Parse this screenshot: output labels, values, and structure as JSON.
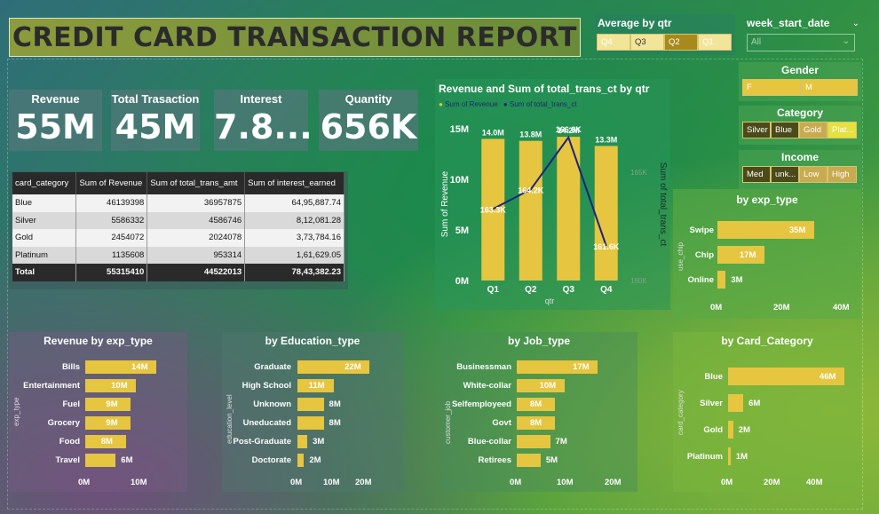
{
  "header": {
    "title": "CREDIT CARD TRANSACTION REPORT"
  },
  "kpis": [
    {
      "label": "Revenue",
      "value": "55M"
    },
    {
      "label": "Total Trasaction",
      "value": "45M"
    },
    {
      "label": "Interest",
      "value": "7.8..."
    },
    {
      "label": "Quantity",
      "value": "656K"
    }
  ],
  "slicers": {
    "avg_qtr": {
      "title": "Average by qtr",
      "items": [
        "Q4",
        "Q3",
        "Q2",
        "Q1"
      ]
    },
    "week": {
      "title": "week_start_date",
      "value": "All"
    },
    "gender": {
      "title": "Gender",
      "items": [
        "F",
        "M"
      ]
    },
    "category": {
      "title": "Category",
      "items": [
        "Silver",
        "Blue",
        "Gold",
        "Plat..."
      ]
    },
    "income": {
      "title": "Income",
      "items": [
        "Med",
        "unk...",
        "Low",
        "High"
      ]
    }
  },
  "colors": {
    "accent": "#e6c540",
    "line": "#1a237e",
    "dark": "#2a2a2a"
  },
  "table": {
    "headers": [
      "card_category",
      "Sum of Revenue",
      "Sum of total_trans_amt",
      "Sum of interest_earned"
    ],
    "rows": [
      [
        "Blue",
        "46139398",
        "36957875",
        "64,95,887.74"
      ],
      [
        "Silver",
        "5586332",
        "4586746",
        "8,12,081.28"
      ],
      [
        "Gold",
        "2454072",
        "2024078",
        "3,73,784.16"
      ],
      [
        "Platinum",
        "1135608",
        "953314",
        "1,61,629.05"
      ]
    ],
    "total": [
      "Total",
      "55315410",
      "44522013",
      "78,43,382.23"
    ]
  },
  "chart_data": [
    {
      "type": "bar",
      "title": "Revenue and Sum of total_trans_ct by qtr",
      "legend": [
        "Sum of Revenue",
        "Sum of total_trans_ct"
      ],
      "categories": [
        "Q1",
        "Q2",
        "Q3",
        "Q4"
      ],
      "series": [
        {
          "name": "Sum of Revenue",
          "values": [
            14.0,
            13.8,
            14.2,
            13.3
          ],
          "labels": [
            "14.0M",
            "13.8M",
            "14.2M",
            "13.3M"
          ]
        },
        {
          "name": "Sum of total_trans_ct",
          "values": [
            163.3,
            164.2,
            166.6,
            161.6
          ],
          "labels": [
            "163.3K",
            "164.2K",
            "166.6K",
            "161.6K"
          ]
        }
      ],
      "xlabel": "qtr",
      "ylabel": "Sum of Revenue",
      "y2label": "Sum of total_trans_ct",
      "yticks": [
        "15M",
        "10M",
        "5M",
        "0M"
      ],
      "y2ticks": [
        "165K",
        "160K"
      ],
      "ylim": [
        0,
        15
      ],
      "y2lim": [
        160,
        167
      ]
    },
    {
      "type": "bar",
      "title": "by exp_type",
      "ylabel": "use_chip",
      "categories": [
        "Swipe",
        "Chip",
        "Online"
      ],
      "values": [
        35,
        17,
        3
      ],
      "labels": [
        "35M",
        "17M",
        "3M"
      ],
      "xticks": [
        "0M",
        "20M",
        "40M"
      ],
      "xlim": [
        0,
        45
      ]
    },
    {
      "type": "bar",
      "title": "Revenue by exp_type",
      "ylabel": "exp_type",
      "categories": [
        "Bills",
        "Entertainment",
        "Fuel",
        "Grocery",
        "Food",
        "Travel"
      ],
      "values": [
        14,
        10,
        9,
        9,
        8,
        6
      ],
      "labels": [
        "14M",
        "10M",
        "9M",
        "9M",
        "8M",
        "6M"
      ],
      "xticks": [
        "0M",
        "10M"
      ],
      "xlim": [
        0,
        14
      ]
    },
    {
      "type": "bar",
      "title": "by Education_type",
      "ylabel": "education_level",
      "categories": [
        "Graduate",
        "High School",
        "Unknown",
        "Uneducated",
        "Post-Graduate",
        "Doctorate"
      ],
      "values": [
        22,
        11,
        8,
        8,
        3,
        2
      ],
      "labels": [
        "22M",
        "11M",
        "8M",
        "8M",
        "3M",
        "2M"
      ],
      "xticks": [
        "0M",
        "10M",
        "20M"
      ],
      "xlim": [
        0,
        26
      ]
    },
    {
      "type": "bar",
      "title": "by Job_type",
      "ylabel": "customer_job",
      "categories": [
        "Businessman",
        "White-collar",
        "Selfemployeed",
        "Govt",
        "Blue-collar",
        "Retirees"
      ],
      "values": [
        17,
        10,
        8,
        8,
        7,
        5
      ],
      "labels": [
        "17M",
        "10M",
        "8M",
        "8M",
        "7M",
        "5M"
      ],
      "xticks": [
        "0M",
        "10M",
        "20M"
      ],
      "xlim": [
        0,
        22
      ]
    },
    {
      "type": "bar",
      "title": "by Card_Category",
      "ylabel": "card_category",
      "categories": [
        "Blue",
        "Silver",
        "Gold",
        "Platinum"
      ],
      "values": [
        46,
        6,
        2,
        1
      ],
      "labels": [
        "46M",
        "6M",
        "2M",
        "1M"
      ],
      "xticks": [
        "0M",
        "20M",
        "40M"
      ],
      "xlim": [
        0,
        52
      ]
    }
  ]
}
